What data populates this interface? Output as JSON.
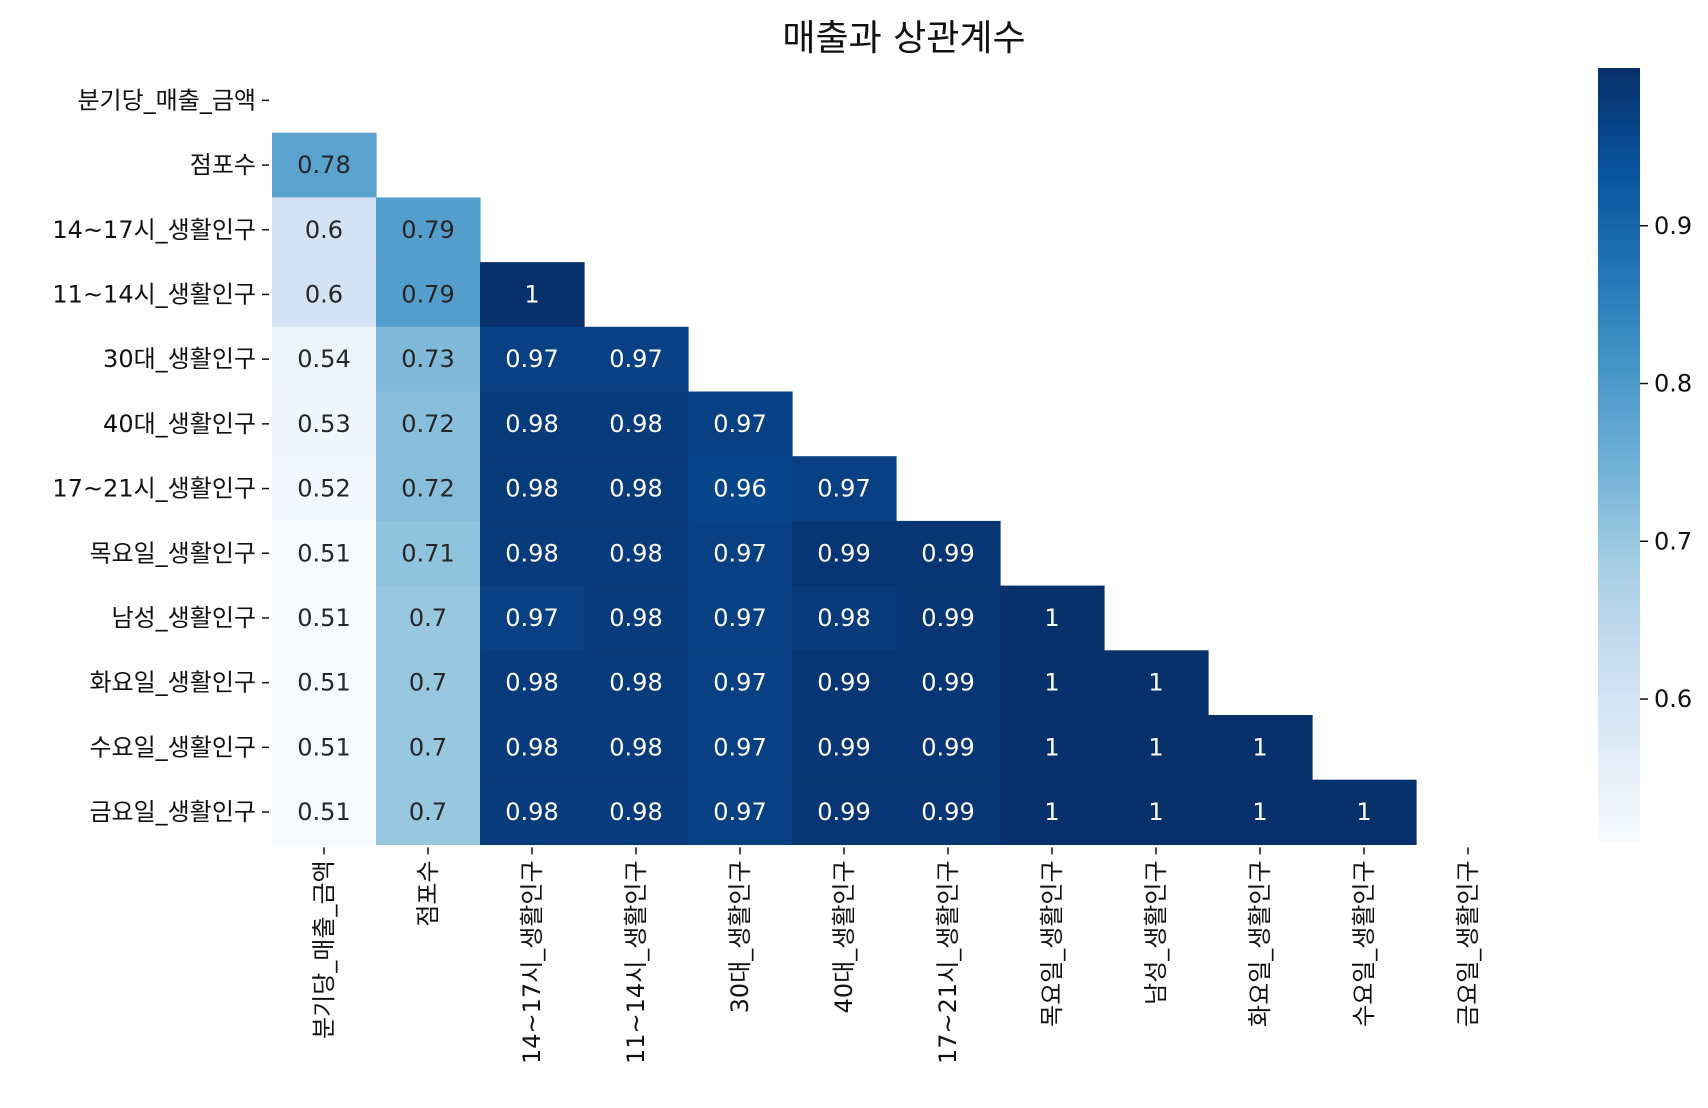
{
  "chart_data": {
    "type": "heatmap",
    "title": "매출과 상관계수",
    "xlabel": "",
    "ylabel": "",
    "mask": "upper-triangle-including-diagonal",
    "colormap": "Blues",
    "colormap_stops": [
      "#f7fbff",
      "#deebf7",
      "#c6dbef",
      "#9ecae1",
      "#6baed6",
      "#4292c6",
      "#2171b5",
      "#08519c",
      "#08306b"
    ],
    "vmin": 0.51,
    "vmax": 1.0,
    "colorbar_ticks": [
      0.6,
      0.7,
      0.8,
      0.9
    ],
    "colorbar_tick_labels": [
      "0.6",
      "0.7",
      "0.8",
      "0.9"
    ],
    "labels": [
      "분기당_매출_금액",
      "점포수",
      "14~17시_생활인구",
      "11~14시_생활인구",
      "30대_생활인구",
      "40대_생활인구",
      "17~21시_생활인구",
      "목요일_생활인구",
      "남성_생활인구",
      "화요일_생활인구",
      "수요일_생활인구",
      "금요일_생활인구"
    ],
    "rows": [
      [],
      [
        0.78
      ],
      [
        0.6,
        0.79
      ],
      [
        0.6,
        0.79,
        1
      ],
      [
        0.54,
        0.73,
        0.97,
        0.97
      ],
      [
        0.53,
        0.72,
        0.98,
        0.98,
        0.97
      ],
      [
        0.52,
        0.72,
        0.98,
        0.98,
        0.96,
        0.97
      ],
      [
        0.51,
        0.71,
        0.98,
        0.98,
        0.97,
        0.99,
        0.99
      ],
      [
        0.51,
        0.7,
        0.97,
        0.98,
        0.97,
        0.98,
        0.99,
        1
      ],
      [
        0.51,
        0.7,
        0.98,
        0.98,
        0.97,
        0.99,
        0.99,
        1,
        1
      ],
      [
        0.51,
        0.7,
        0.98,
        0.98,
        0.97,
        0.99,
        0.99,
        1,
        1,
        1
      ],
      [
        0.51,
        0.7,
        0.98,
        0.98,
        0.97,
        0.99,
        0.99,
        1,
        1,
        1,
        1
      ]
    ]
  }
}
